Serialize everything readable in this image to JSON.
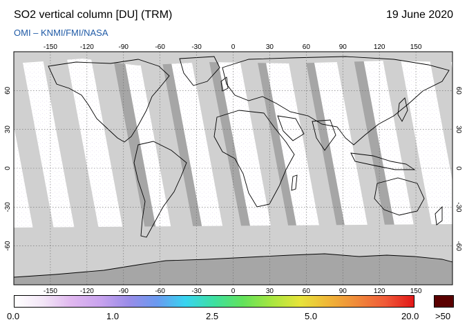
{
  "header": {
    "title": "SO2 vertical column [DU] (TRM)",
    "date": "19 June 2020",
    "source": "OMI  –  KNMI/FMI/NASA"
  },
  "map": {
    "projection": "equirectangular",
    "lon_ticks": [
      "-150",
      "-120",
      "-90",
      "-60",
      "-30",
      "0",
      "30",
      "60",
      "90",
      "120",
      "150"
    ],
    "lat_ticks": [
      "60",
      "30",
      "0",
      "-30",
      "-60"
    ],
    "colors": {
      "ocean_background": "#ffffff",
      "pixel_speckle": "#f2eef7",
      "no_data_light": "#d0d0d0",
      "no_data_dark": "#a6a6a6",
      "coastline": "#000000"
    }
  },
  "colorbar": {
    "labels": [
      "0.0",
      "1.0",
      "2.5",
      "5.0",
      "20.0"
    ],
    "over_label": ">50",
    "stops": [
      "#ffffff",
      "#f3e6f7",
      "#e0b7ef",
      "#c9a3ee",
      "#9a8ce8",
      "#6a9af0",
      "#38d4f0",
      "#3ee0a0",
      "#62e25c",
      "#a6e640",
      "#e6e43a",
      "#f0b638",
      "#f08a3a",
      "#f05a38",
      "#e21818"
    ],
    "over_color": "#5a0000"
  }
}
